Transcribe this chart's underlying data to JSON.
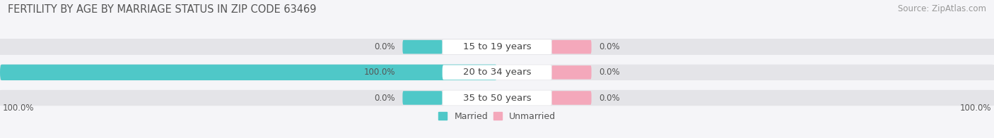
{
  "title": "FERTILITY BY AGE BY MARRIAGE STATUS IN ZIP CODE 63469",
  "source": "Source: ZipAtlas.com",
  "categories": [
    "15 to 19 years",
    "20 to 34 years",
    "35 to 50 years"
  ],
  "married": [
    0.0,
    100.0,
    0.0
  ],
  "unmarried": [
    0.0,
    0.0,
    0.0
  ],
  "married_color": "#4fc8c8",
  "unmarried_color": "#f4a8bb",
  "bar_bg_color": "#e4e4e8",
  "bar_bg_color2": "#ededf0",
  "center_label_color": "#ffffff",
  "bar_height": 0.62,
  "xlim": 100.0,
  "title_fontsize": 10.5,
  "source_fontsize": 8.5,
  "label_fontsize": 8.5,
  "category_fontsize": 9.5,
  "legend_fontsize": 9,
  "bottom_left_label": "100.0%",
  "bottom_right_label": "100.0%",
  "background_color": "#f5f5f8",
  "plot_bg_color": "#f5f5f8",
  "title_color": "#555555",
  "label_color": "#555555",
  "source_color": "#999999"
}
